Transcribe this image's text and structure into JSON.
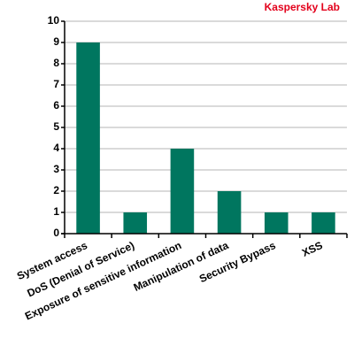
{
  "chart_data": {
    "type": "bar",
    "credit": "Kaspersky Lab",
    "categories": [
      "System access",
      "DoS (Denial of Service)",
      "Exposure of sensitive information",
      "Manipulation of data",
      "Security Bypass",
      "XSS"
    ],
    "values": [
      9,
      1,
      4,
      2,
      1,
      1
    ],
    "color": "#00765f",
    "ylim": [
      0,
      10
    ],
    "yticks": [
      0,
      1,
      2,
      3,
      4,
      5,
      6,
      7,
      8,
      9,
      10
    ],
    "grid": true
  }
}
